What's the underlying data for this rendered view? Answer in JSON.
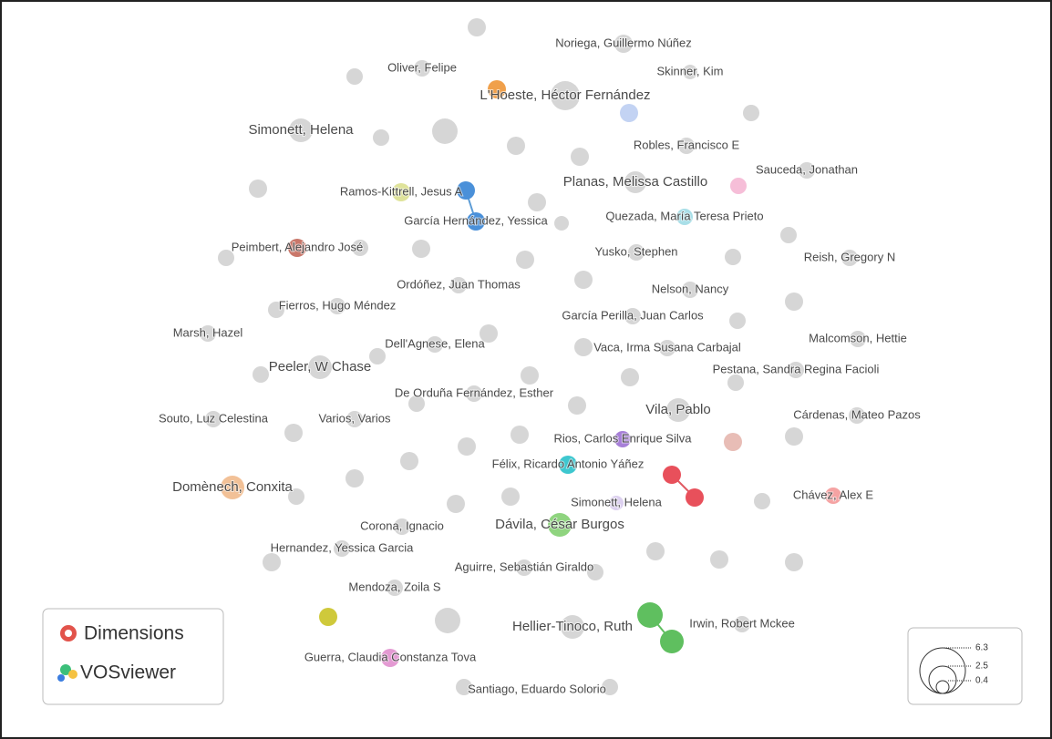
{
  "nodes": [
    {
      "label": "Noriega, Guillermo Núñez"
    },
    {
      "label": "Oliver, Felipe"
    },
    {
      "label": "Skinner, Kim"
    },
    {
      "label": "L'Hoeste, Héctor Fernández"
    },
    {
      "label": "Simonett, Helena"
    },
    {
      "label": "Robles, Francisco E"
    },
    {
      "label": "Planas, Melissa Castillo"
    },
    {
      "label": "Sauceda, Jonathan"
    },
    {
      "label": "Ramos-Kittrell, Jesus A"
    },
    {
      "label": "García Hernández, Yessica"
    },
    {
      "label": "Quezada, María Teresa Prieto"
    },
    {
      "label": "Peimbert, Alejandro José"
    },
    {
      "label": "Yusko, Stephen"
    },
    {
      "label": "Reish, Gregory N"
    },
    {
      "label": "Ordóñez, Juan Thomas"
    },
    {
      "label": "Nelson, Nancy"
    },
    {
      "label": "Fierros, Hugo Méndez"
    },
    {
      "label": "García Perilla, Juan Carlos"
    },
    {
      "label": "Marsh, Hazel"
    },
    {
      "label": "Malcomson, Hettie"
    },
    {
      "label": "Dell'Agnese, Elena"
    },
    {
      "label": "Vaca, Irma Susana Carbajal"
    },
    {
      "label": "Peeler, W Chase"
    },
    {
      "label": "Pestana, Sandra Regina Facioli"
    },
    {
      "label": "De Orduña Fernández, Esther"
    },
    {
      "label": "Vila, Pablo"
    },
    {
      "label": "Souto, Luz Celestina"
    },
    {
      "label": "Varios, Varios"
    },
    {
      "label": "Cárdenas, Mateo Pazos"
    },
    {
      "label": "Rios, Carlos Enrique Silva"
    },
    {
      "label": "Félix, Ricardo Antonio Yáñez"
    },
    {
      "label": "Domènech, Conxita"
    },
    {
      "label": "Chávez, Alex E"
    },
    {
      "label": "Simonett, Helena"
    },
    {
      "label": "Dávila, César Burgos"
    },
    {
      "label": "Corona, Ignacio"
    },
    {
      "label": "Hernandez, Yessica Garcia"
    },
    {
      "label": "Aguirre, Sebastián Giraldo"
    },
    {
      "label": "Mendoza, Zoila S"
    },
    {
      "label": "Hellier-Tinoco, Ruth"
    },
    {
      "label": "Irwin, Robert Mckee"
    },
    {
      "label": "Guerra, Claudia Constanza Tova"
    },
    {
      "label": "Santiago, Eduardo Solorio"
    }
  ],
  "logos": [
    "Dimensions",
    "VOSviewer"
  ],
  "size_legend": [
    6.3,
    2.5,
    0.4
  ]
}
